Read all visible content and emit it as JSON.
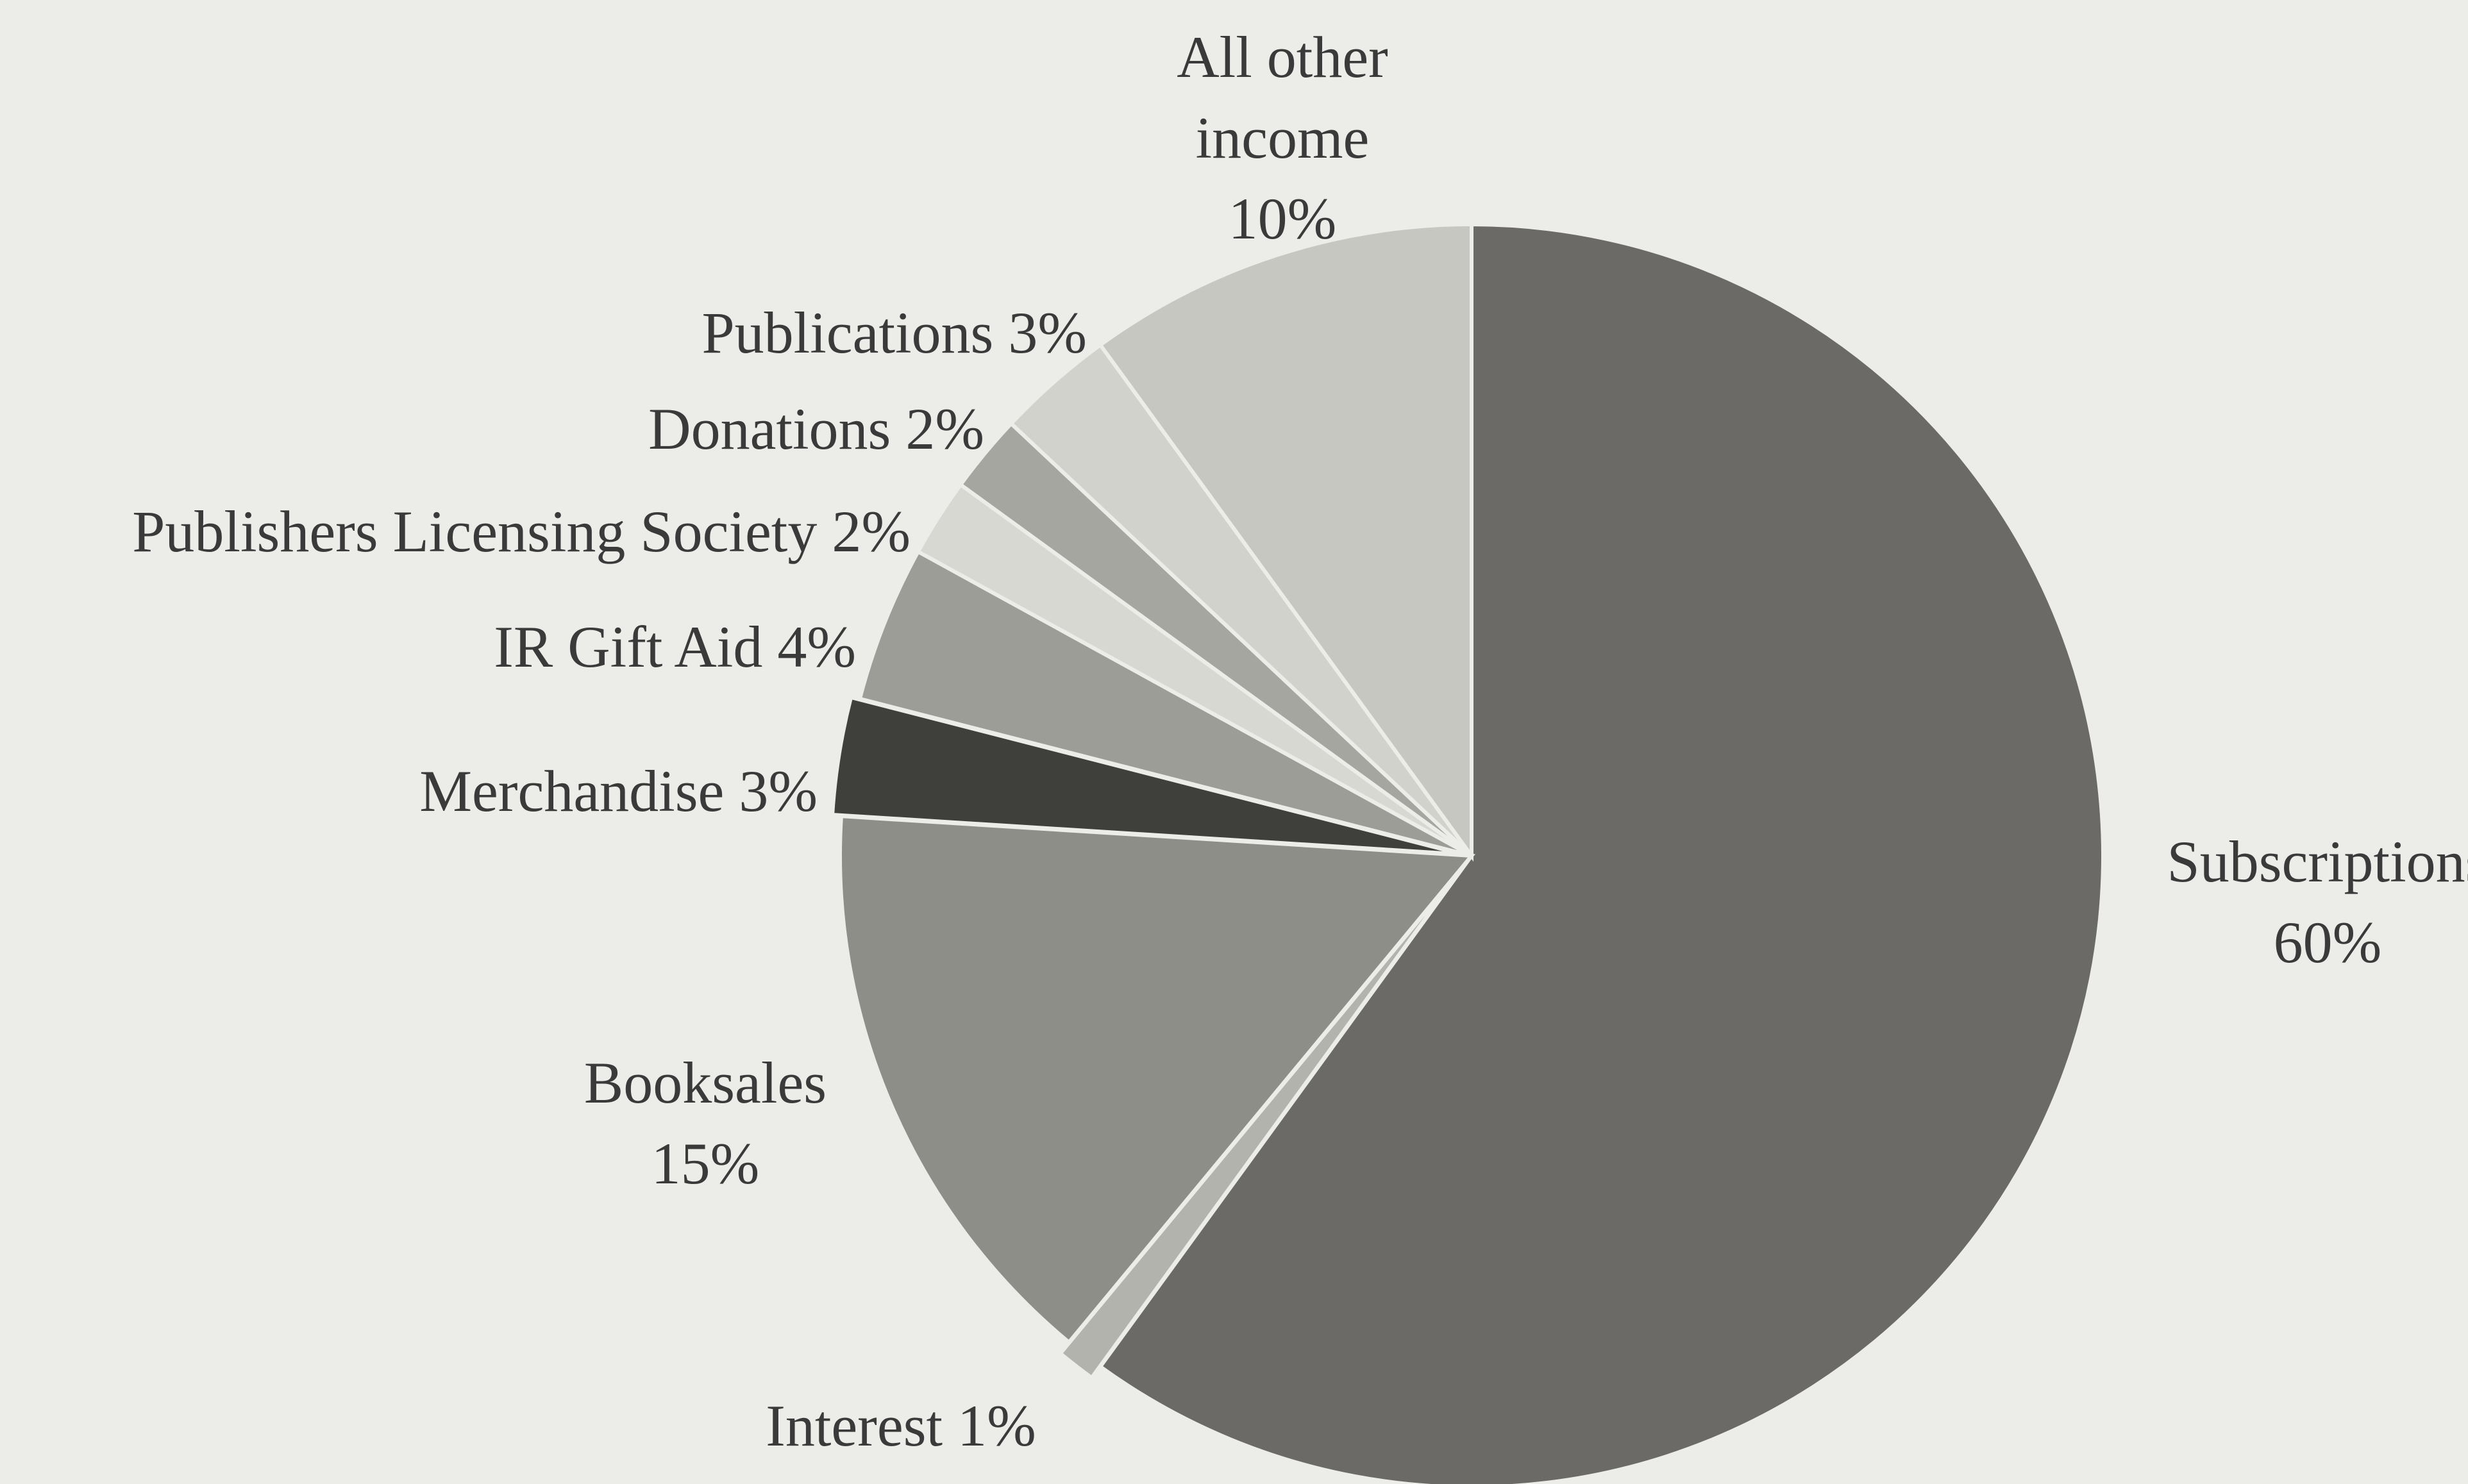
{
  "chart_data": {
    "type": "pie",
    "title": "",
    "slices": [
      {
        "label": "Subscriptions",
        "value": 60,
        "label_lines": [
          "Subscriptions",
          "60%"
        ],
        "color": "#6b6a66"
      },
      {
        "label": "Interest",
        "value": 1,
        "label_lines": [
          "Interest 1%"
        ],
        "color": "#b3b3ae"
      },
      {
        "label": "Booksales",
        "value": 15,
        "label_lines": [
          "Booksales",
          "15%"
        ],
        "color": "#8e8e88"
      },
      {
        "label": "Merchandise",
        "value": 3,
        "label_lines": [
          "Merchandise 3%"
        ],
        "color": "#3f3f3b"
      },
      {
        "label": "IR Gift Aid",
        "value": 4,
        "label_lines": [
          "IR Gift Aid 4%"
        ],
        "color": "#9d9d97"
      },
      {
        "label": "Publishers Licensing Society",
        "value": 2,
        "label_lines": [
          "Publishers Licensing Society 2%"
        ],
        "color": "#d8d8d3"
      },
      {
        "label": "Donations",
        "value": 2,
        "label_lines": [
          "Donations 2%"
        ],
        "color": "#a6a6a1"
      },
      {
        "label": "Publications",
        "value": 3,
        "label_lines": [
          "Publications 3%"
        ],
        "color": "#d2d2cc"
      },
      {
        "label": "All other income",
        "value": 10,
        "label_lines": [
          "All other",
          "income",
          "10%"
        ],
        "color": "#c7c7c1"
      }
    ],
    "legend": "none",
    "label_placement": "outside"
  }
}
